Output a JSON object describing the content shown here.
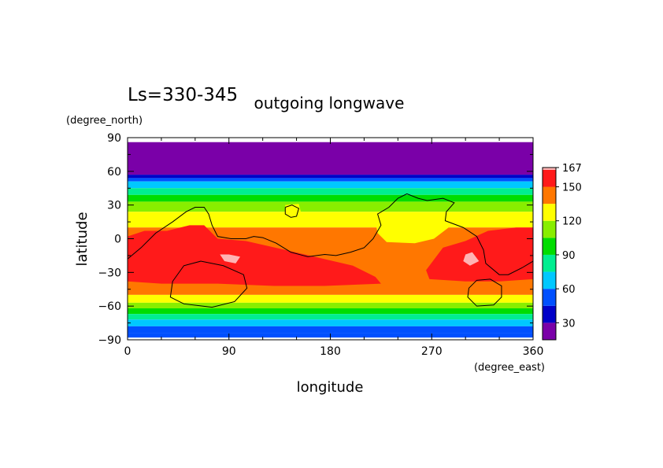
{
  "header": {
    "season": "Ls=330-345",
    "title": "outgoing longwave"
  },
  "chart_data": {
    "type": "heatmap",
    "title": "outgoing longwave",
    "subtitle": "Ls=330-345",
    "xlabel": "longitude",
    "ylabel": "latitude",
    "x_units": "(degree_east)",
    "y_units": "(degree_north)",
    "xlim": [
      0,
      360
    ],
    "ylim": [
      -90,
      90
    ],
    "data_ylim": [
      -88,
      86
    ],
    "x_ticks": [
      "0",
      "90",
      "180",
      "270",
      "360"
    ],
    "y_ticks": [
      "90",
      "60",
      "30",
      "0",
      "−30",
      "−60",
      "−90"
    ],
    "x_tick_values": [
      0,
      90,
      180,
      270,
      360
    ],
    "y_tick_values": [
      90,
      60,
      30,
      0,
      -30,
      -60,
      -90
    ],
    "colorbar": {
      "levels": [
        15,
        30,
        45,
        60,
        75,
        90,
        105,
        120,
        135,
        150,
        165,
        167
      ],
      "colors": [
        "#7a00a8",
        "#0000c8",
        "#0050ff",
        "#00c8ff",
        "#00ee90",
        "#00dd00",
        "#88ee00",
        "#ffff00",
        "#ff7700",
        "#ff1a1a",
        "#ffb4b4"
      ],
      "tick_labels": [
        "30",
        "60",
        "90",
        "120",
        "150",
        "167"
      ],
      "tick_values": [
        30,
        60,
        90,
        120,
        150,
        167
      ]
    },
    "latitude_bands": [
      {
        "lat_min": 57,
        "lat_max": 86,
        "value": 22
      },
      {
        "lat_min": 54,
        "lat_max": 57,
        "value": 37
      },
      {
        "lat_min": 51,
        "lat_max": 54,
        "value": 52
      },
      {
        "lat_min": 45,
        "lat_max": 51,
        "value": 67
      },
      {
        "lat_min": 39,
        "lat_max": 45,
        "value": 82
      },
      {
        "lat_min": 33,
        "lat_max": 39,
        "value": 97
      },
      {
        "lat_min": 24,
        "lat_max": 33,
        "value": 112
      },
      {
        "lat_min": 10,
        "lat_max": 24,
        "value": 127
      },
      {
        "lat_min": -50,
        "lat_max": 10,
        "value": 142
      },
      {
        "lat_min": -57,
        "lat_max": -50,
        "value": 127
      },
      {
        "lat_min": -62,
        "lat_max": -57,
        "value": 112
      },
      {
        "lat_min": -67,
        "lat_max": -62,
        "value": 97
      },
      {
        "lat_min": -72,
        "lat_max": -67,
        "value": 82
      },
      {
        "lat_min": -78,
        "lat_max": -72,
        "value": 67
      },
      {
        "lat_min": -84,
        "lat_max": -78,
        "value": 52
      },
      {
        "lat_min": -88,
        "lat_max": -84,
        "value": 52
      }
    ],
    "regions": [
      {
        "value": 157,
        "points": [
          [
            0,
            2
          ],
          [
            15,
            7
          ],
          [
            35,
            7
          ],
          [
            55,
            12
          ],
          [
            68,
            12
          ],
          [
            80,
            0
          ],
          [
            105,
            -2
          ],
          [
            140,
            -10
          ],
          [
            170,
            -17
          ],
          [
            200,
            -24
          ],
          [
            220,
            -34
          ],
          [
            225,
            -40
          ],
          [
            175,
            -42
          ],
          [
            130,
            -42
          ],
          [
            80,
            -40
          ],
          [
            30,
            -40
          ],
          [
            0,
            -38
          ]
        ]
      },
      {
        "value": 157,
        "points": [
          [
            265,
            -28
          ],
          [
            280,
            -8
          ],
          [
            300,
            -2
          ],
          [
            320,
            7
          ],
          [
            345,
            10
          ],
          [
            360,
            10
          ],
          [
            360,
            -36
          ],
          [
            330,
            -38
          ],
          [
            300,
            -38
          ],
          [
            268,
            -36
          ]
        ]
      },
      {
        "value": 166,
        "points": [
          [
            82,
            -14
          ],
          [
            90,
            -14
          ],
          [
            100,
            -16
          ],
          [
            96,
            -22
          ],
          [
            86,
            -20
          ]
        ]
      },
      {
        "value": 166,
        "points": [
          [
            300,
            -14
          ],
          [
            306,
            -12
          ],
          [
            312,
            -20
          ],
          [
            304,
            -24
          ],
          [
            298,
            -20
          ]
        ]
      },
      {
        "value": 127,
        "points": [
          [
            220,
            15
          ],
          [
            240,
            20
          ],
          [
            258,
            22
          ],
          [
            272,
            15
          ],
          [
            285,
            10
          ],
          [
            272,
            0
          ],
          [
            255,
            -4
          ],
          [
            230,
            -3
          ],
          [
            222,
            5
          ]
        ]
      },
      {
        "value": 127,
        "points": [
          [
            140,
            30
          ],
          [
            152,
            31
          ],
          [
            154,
            23
          ],
          [
            146,
            20
          ],
          [
            140,
            23
          ]
        ]
      }
    ],
    "topography_contours": [
      {
        "points": [
          [
            0,
            -18
          ],
          [
            12,
            -8
          ],
          [
            25,
            5
          ],
          [
            40,
            15
          ],
          [
            52,
            24
          ],
          [
            60,
            28
          ],
          [
            68,
            28
          ],
          [
            72,
            22
          ],
          [
            75,
            12
          ],
          [
            80,
            2
          ],
          [
            92,
            0
          ],
          [
            105,
            0
          ],
          [
            112,
            2
          ],
          [
            120,
            1
          ],
          [
            132,
            -4
          ],
          [
            145,
            -12
          ],
          [
            160,
            -16
          ],
          [
            175,
            -14
          ],
          [
            185,
            -15
          ],
          [
            198,
            -12
          ],
          [
            210,
            -8
          ],
          [
            218,
            0
          ],
          [
            225,
            12
          ],
          [
            222,
            22
          ],
          [
            232,
            28
          ],
          [
            240,
            36
          ],
          [
            248,
            40
          ],
          [
            258,
            36
          ],
          [
            266,
            34
          ],
          [
            280,
            36
          ],
          [
            290,
            32
          ],
          [
            283,
            24
          ],
          [
            282,
            16
          ],
          [
            298,
            10
          ],
          [
            310,
            2
          ],
          [
            316,
            -10
          ],
          [
            318,
            -22
          ],
          [
            330,
            -32
          ],
          [
            338,
            -32
          ],
          [
            350,
            -26
          ],
          [
            360,
            -20
          ]
        ]
      },
      {
        "points": [
          [
            140,
            28
          ],
          [
            146,
            30
          ],
          [
            152,
            27
          ],
          [
            150,
            20
          ],
          [
            145,
            19
          ],
          [
            140,
            22
          ],
          [
            140,
            28
          ]
        ]
      },
      {
        "points": [
          [
            40,
            -38
          ],
          [
            50,
            -24
          ],
          [
            65,
            -20
          ],
          [
            85,
            -24
          ],
          [
            103,
            -32
          ],
          [
            106,
            -44
          ],
          [
            95,
            -56
          ],
          [
            75,
            -61
          ],
          [
            50,
            -58
          ],
          [
            38,
            -52
          ],
          [
            40,
            -38
          ]
        ]
      },
      {
        "points": [
          [
            303,
            -44
          ],
          [
            310,
            -37
          ],
          [
            322,
            -36
          ],
          [
            332,
            -42
          ],
          [
            332,
            -52
          ],
          [
            325,
            -59
          ],
          [
            310,
            -60
          ],
          [
            302,
            -52
          ],
          [
            303,
            -44
          ]
        ]
      }
    ]
  }
}
